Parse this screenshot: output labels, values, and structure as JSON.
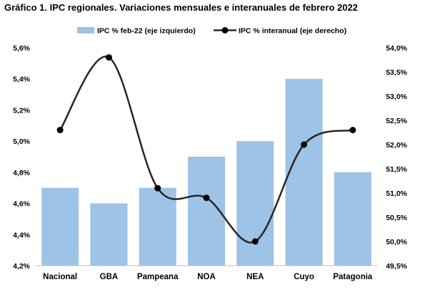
{
  "chart_data": {
    "type": "bar",
    "title": "Gráfico 1. IPC regionales. Variaciones mensuales e interanuales de febrero 2022",
    "categories": [
      "Nacional",
      "GBA",
      "Pampeana",
      "NOA",
      "NEA",
      "Cuyo",
      "Patagonia"
    ],
    "series": [
      {
        "name": "IPC % feb-22 (eje izquierdo)",
        "type": "bar",
        "axis": "left",
        "color": "#9dc3e6",
        "values": [
          4.7,
          4.6,
          4.7,
          4.9,
          5.0,
          5.4,
          4.8
        ]
      },
      {
        "name": "IPC % interanual (eje derecho)",
        "type": "line",
        "axis": "right",
        "smooth": true,
        "color": "#262626",
        "values": [
          52.3,
          53.8,
          51.1,
          50.9,
          50.0,
          52.0,
          52.3
        ]
      }
    ],
    "left_axis": {
      "ylim": [
        4.2,
        5.6
      ],
      "ticks": [
        4.2,
        4.4,
        4.6,
        4.8,
        5.0,
        5.2,
        5.4,
        5.6
      ],
      "tick_labels": [
        "4,2%",
        "4,4%",
        "4,6%",
        "4,8%",
        "5,0%",
        "5,2%",
        "5,4%",
        "5,6%"
      ]
    },
    "right_axis": {
      "ylim": [
        49.5,
        54.0
      ],
      "ticks": [
        49.5,
        50.0,
        50.5,
        51.0,
        51.5,
        52.0,
        52.5,
        53.0,
        53.5,
        54.0
      ],
      "tick_labels": [
        "49,5%",
        "50,0%",
        "50,5%",
        "51,0%",
        "51,5%",
        "52,0%",
        "52,5%",
        "53,0%",
        "53,5%",
        "54,0%"
      ]
    },
    "grid": false,
    "legend": "top"
  }
}
